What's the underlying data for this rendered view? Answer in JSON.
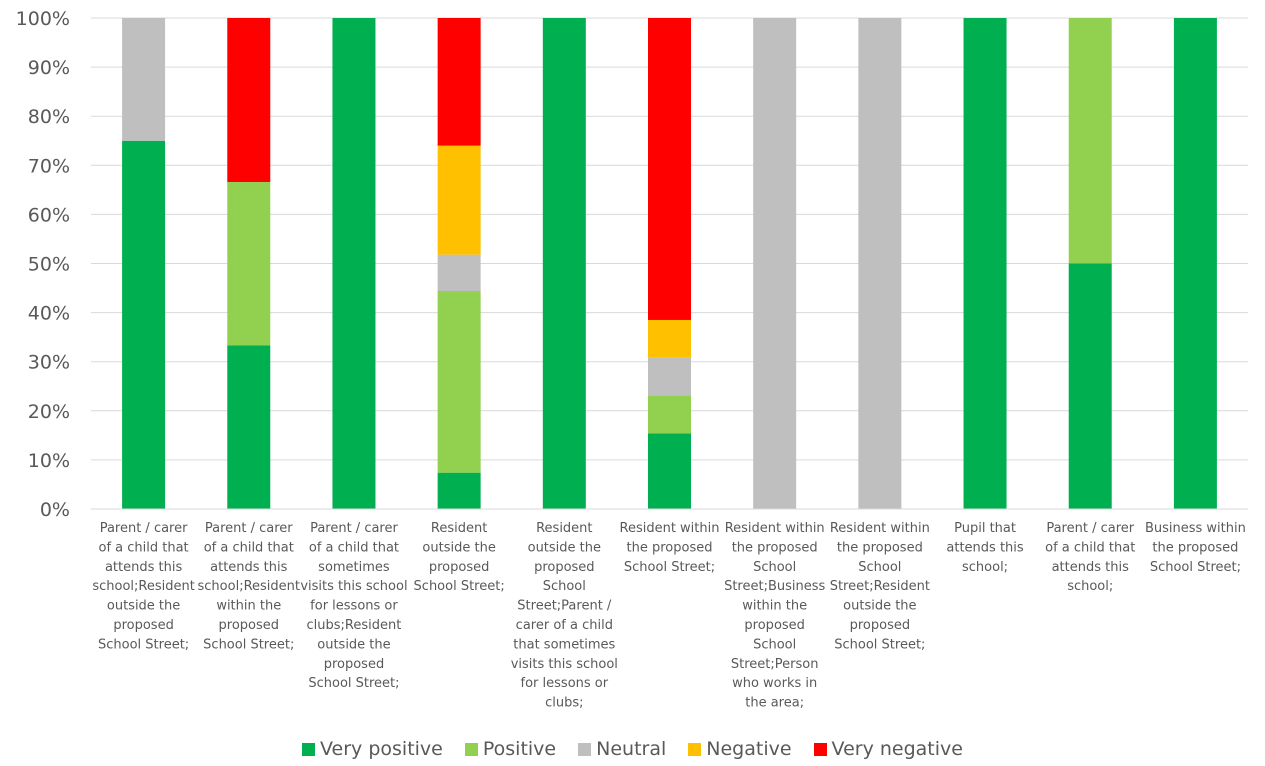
{
  "chart_data": {
    "type": "bar",
    "stacked": true,
    "percent": true,
    "title": "",
    "xlabel": "",
    "ylabel": "",
    "ylim": [
      0,
      100
    ],
    "yticks": [
      "0%",
      "10%",
      "20%",
      "30%",
      "40%",
      "50%",
      "60%",
      "70%",
      "80%",
      "90%",
      "100%"
    ],
    "grid": true,
    "legend_position": "bottom",
    "categories": [
      "Parent / carer of a child that attends this school;Resident outside the proposed School Street;",
      "Parent / carer of a child that attends this school;Resident within the proposed School Street;",
      "Parent / carer of a child that sometimes visits this school for lessons or clubs;Resident outside the proposed School Street;",
      "Resident outside the proposed School Street;",
      "Resident outside the proposed School Street;Parent / carer of a child that sometimes visits this school for lessons or clubs;",
      "Resident within the proposed School Street;",
      "Resident within the proposed School Street;Business within the proposed School Street;Person who works in the area;",
      "Resident within the proposed School Street;Resident outside the proposed School Street;",
      "Pupil that attends this school;",
      "Parent / carer of a child that attends this school;",
      "Business within the proposed School Street;"
    ],
    "category_label_lines": [
      [
        "Parent / carer",
        "of a child that",
        "attends this",
        "school;Resident",
        "outside the",
        "proposed",
        "School Street;"
      ],
      [
        "Parent / carer",
        "of a child that",
        "attends this",
        "school;Resident",
        "within the",
        "proposed",
        "School Street;"
      ],
      [
        "Parent / carer",
        "of a child that",
        "sometimes",
        "visits this school",
        "for lessons or",
        "clubs;Resident",
        "outside the",
        "proposed",
        "School Street;"
      ],
      [
        "Resident",
        "outside the",
        "proposed",
        "School Street;"
      ],
      [
        "Resident",
        "outside the",
        "proposed",
        "School",
        "Street;Parent /",
        "carer of a child",
        "that sometimes",
        "visits this school",
        "for lessons or",
        "clubs;"
      ],
      [
        "Resident within",
        "the proposed",
        "School Street;"
      ],
      [
        "Resident within",
        "the proposed",
        "School",
        "Street;Business",
        "within the",
        "proposed",
        "School",
        "Street;Person",
        "who works in",
        "the area;"
      ],
      [
        "Resident within",
        "the proposed",
        "School",
        "Street;Resident",
        "outside the",
        "proposed",
        "School Street;"
      ],
      [
        "Pupil that",
        "attends this",
        "school;"
      ],
      [
        "Parent / carer",
        "of a child that",
        "attends this",
        "school;"
      ],
      [
        "Business within",
        "the proposed",
        "School Street;"
      ]
    ],
    "series": [
      {
        "name": "Very positive",
        "color": "#00B050",
        "values": [
          75,
          33.3,
          100,
          7.4,
          100,
          15.4,
          0,
          0,
          100,
          50,
          100
        ]
      },
      {
        "name": "Positive",
        "color": "#92D050",
        "values": [
          0,
          33.3,
          0,
          37,
          0,
          7.7,
          0,
          0,
          0,
          50,
          0
        ]
      },
      {
        "name": "Neutral",
        "color": "#BFBFBF",
        "values": [
          25,
          0,
          0,
          7.4,
          0,
          7.7,
          100,
          100,
          0,
          0,
          0
        ]
      },
      {
        "name": "Negative",
        "color": "#FFC000",
        "values": [
          0,
          0,
          0,
          22.2,
          0,
          7.7,
          0,
          0,
          0,
          0,
          0
        ]
      },
      {
        "name": "Very negative",
        "color": "#FF0000",
        "values": [
          0,
          33.4,
          0,
          26,
          0,
          61.5,
          0,
          0,
          0,
          0,
          0
        ]
      }
    ]
  }
}
